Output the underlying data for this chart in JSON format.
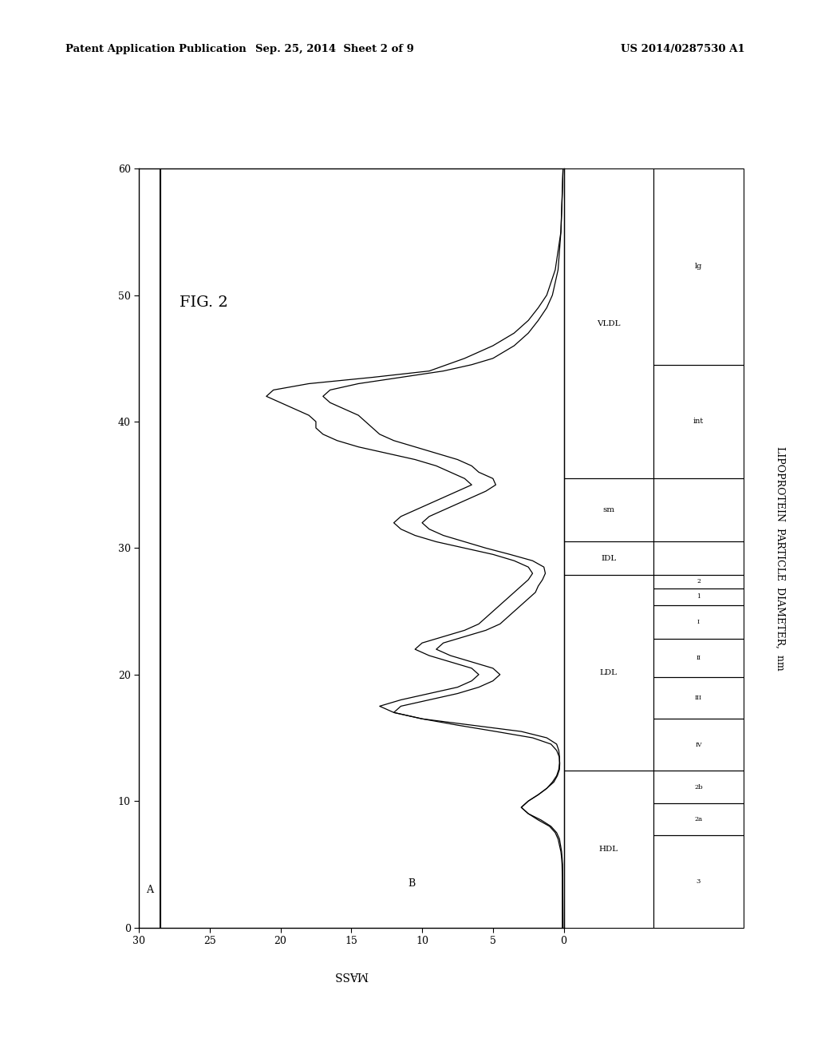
{
  "header_left": "Patent Application Publication",
  "header_center": "Sep. 25, 2014  Sheet 2 of 9",
  "header_right": "US 2014/0287530 A1",
  "fig_label": "FIG. 2",
  "xlabel_rotated": "LIPOPROTEIN  PARTICLE  DIAMETER,  nm",
  "ylabel_rotated": "MASS",
  "mass_lim": [
    0,
    30
  ],
  "diam_lim": [
    0,
    60
  ],
  "mass_ticks": [
    0,
    5,
    10,
    15,
    20,
    25,
    30
  ],
  "diam_ticks": [
    0,
    10,
    20,
    30,
    40,
    50,
    60
  ],
  "hdl_subs": [
    {
      "name": "3",
      "dmin": 0.0,
      "dmax": 7.3
    },
    {
      "name": "2a",
      "dmin": 7.3,
      "dmax": 9.8
    },
    {
      "name": "2b",
      "dmin": 9.8,
      "dmax": 12.4
    }
  ],
  "ldl_subs": [
    {
      "name": "IV",
      "dmin": 12.4,
      "dmax": 16.5
    },
    {
      "name": "III",
      "dmin": 16.5,
      "dmax": 19.8
    },
    {
      "name": "II",
      "dmin": 19.8,
      "dmax": 22.8
    },
    {
      "name": "I",
      "dmin": 22.8,
      "dmax": 25.5
    },
    {
      "name": "1",
      "dmin": 25.5,
      "dmax": 26.8
    },
    {
      "name": "2",
      "dmin": 26.8,
      "dmax": 27.9
    }
  ],
  "main_bands": [
    {
      "name": "HDL",
      "dmin": 0.0,
      "dmax": 12.4
    },
    {
      "name": "LDL",
      "dmin": 12.4,
      "dmax": 27.9
    },
    {
      "name": "IDL",
      "dmin": 27.9,
      "dmax": 30.5
    },
    {
      "name": "sm",
      "dmin": 30.5,
      "dmax": 35.5
    },
    {
      "name": "VLDL",
      "dmin": 35.5,
      "dmax": 60.0
    }
  ],
  "vldl_subs": [
    {
      "name": "int",
      "dmin": 35.5,
      "dmax": 44.5
    },
    {
      "name": "lg",
      "dmin": 44.5,
      "dmax": 60.0
    }
  ],
  "curve_B_diam": [
    0.0,
    1.0,
    2.0,
    3.0,
    4.0,
    5.0,
    5.5,
    6.0,
    6.5,
    7.0,
    7.5,
    8.0,
    8.5,
    9.0,
    9.5,
    10.0,
    10.5,
    11.0,
    11.5,
    12.0,
    12.5,
    13.0,
    13.5,
    14.0,
    14.5,
    15.0,
    15.5,
    16.0,
    16.5,
    17.0,
    17.5,
    18.0,
    18.5,
    19.0,
    19.5,
    20.0,
    20.5,
    21.0,
    21.5,
    22.0,
    22.5,
    23.0,
    23.5,
    24.0,
    24.5,
    25.0,
    25.5,
    26.0,
    26.5,
    27.0,
    27.5,
    28.0,
    28.5,
    29.0,
    29.5,
    30.0,
    30.5,
    31.0,
    31.5,
    32.0,
    32.5,
    33.0,
    33.5,
    34.0,
    34.5,
    35.0,
    35.5,
    36.0,
    36.5,
    37.0,
    37.5,
    38.0,
    38.5,
    39.0,
    39.5,
    40.0,
    40.5,
    41.0,
    41.5,
    42.0,
    42.5,
    43.0,
    43.5,
    44.0,
    44.5,
    45.0,
    46.0,
    47.0,
    48.0,
    49.0,
    50.0,
    52.0,
    55.0,
    58.0,
    60.0
  ],
  "curve_B_mass": [
    0.1,
    0.1,
    0.1,
    0.1,
    0.1,
    0.12,
    0.15,
    0.2,
    0.3,
    0.4,
    0.6,
    1.0,
    1.8,
    2.5,
    3.0,
    2.5,
    1.8,
    1.2,
    0.8,
    0.5,
    0.35,
    0.3,
    0.3,
    0.35,
    0.5,
    1.2,
    3.0,
    6.5,
    10.0,
    12.0,
    11.5,
    9.5,
    7.5,
    6.0,
    5.0,
    4.5,
    5.0,
    6.5,
    8.0,
    9.0,
    8.5,
    7.0,
    5.5,
    4.5,
    4.0,
    3.5,
    3.0,
    2.5,
    2.0,
    1.8,
    1.5,
    1.3,
    1.4,
    2.2,
    3.8,
    5.5,
    7.0,
    8.5,
    9.5,
    10.0,
    9.5,
    8.5,
    7.5,
    6.5,
    5.5,
    4.8,
    5.0,
    6.0,
    6.5,
    7.5,
    9.0,
    10.5,
    12.0,
    13.0,
    13.5,
    14.0,
    14.5,
    15.5,
    16.5,
    17.0,
    16.5,
    14.5,
    11.5,
    8.5,
    6.5,
    5.0,
    3.5,
    2.5,
    1.8,
    1.2,
    0.8,
    0.4,
    0.2,
    0.1,
    0.05
  ],
  "curve_C_diam": [
    0.0,
    5.0,
    6.0,
    7.0,
    7.5,
    8.0,
    8.5,
    9.0,
    9.5,
    10.0,
    10.5,
    11.0,
    11.5,
    12.0,
    12.5,
    13.0,
    13.5,
    14.0,
    14.5,
    15.0,
    15.5,
    16.0,
    16.5,
    17.0,
    17.5,
    18.0,
    18.5,
    19.0,
    19.5,
    20.0,
    20.5,
    21.0,
    21.5,
    22.0,
    22.5,
    23.0,
    23.5,
    24.0,
    24.5,
    25.0,
    25.5,
    26.0,
    26.5,
    27.0,
    27.5,
    28.0,
    28.5,
    29.0,
    29.5,
    30.0,
    30.5,
    31.0,
    31.5,
    32.0,
    32.5,
    33.0,
    33.5,
    34.0,
    34.5,
    35.0,
    35.5,
    36.0,
    36.5,
    37.0,
    37.5,
    38.0,
    38.5,
    39.0,
    39.5,
    40.0,
    40.5,
    41.0,
    41.5,
    42.0,
    42.5,
    43.0,
    43.5,
    44.0,
    45.0,
    46.0,
    47.0,
    48.0,
    49.0,
    50.0,
    52.0,
    55.0,
    60.0
  ],
  "curve_C_mass": [
    0.05,
    0.08,
    0.15,
    0.3,
    0.5,
    0.9,
    1.6,
    2.5,
    3.0,
    2.5,
    1.8,
    1.2,
    0.7,
    0.45,
    0.3,
    0.28,
    0.32,
    0.5,
    0.9,
    2.2,
    4.8,
    7.5,
    10.0,
    12.0,
    13.0,
    11.5,
    9.5,
    7.5,
    6.5,
    6.0,
    6.5,
    8.0,
    9.5,
    10.5,
    10.0,
    8.5,
    7.0,
    6.0,
    5.5,
    5.0,
    4.5,
    4.0,
    3.5,
    3.0,
    2.5,
    2.2,
    2.5,
    3.5,
    5.0,
    7.0,
    9.0,
    10.5,
    11.5,
    12.0,
    11.5,
    10.5,
    9.5,
    8.5,
    7.5,
    6.5,
    7.0,
    8.0,
    9.0,
    10.5,
    12.5,
    14.5,
    16.0,
    17.0,
    17.5,
    17.5,
    18.0,
    19.0,
    20.0,
    21.0,
    20.5,
    18.0,
    13.5,
    9.5,
    7.0,
    5.0,
    3.5,
    2.5,
    1.8,
    1.2,
    0.6,
    0.2,
    0.05
  ]
}
